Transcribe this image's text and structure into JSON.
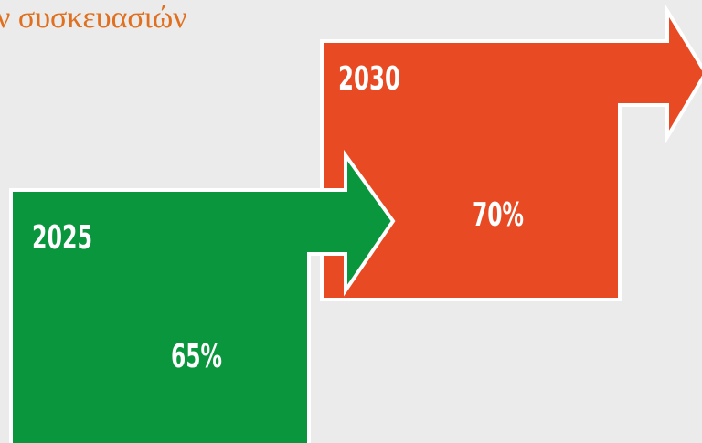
{
  "header": {
    "title": "ν συσκευασιών"
  },
  "steps": [
    {
      "year": "2025",
      "value": "65%"
    },
    {
      "year": "2030",
      "value": "70%"
    }
  ]
}
